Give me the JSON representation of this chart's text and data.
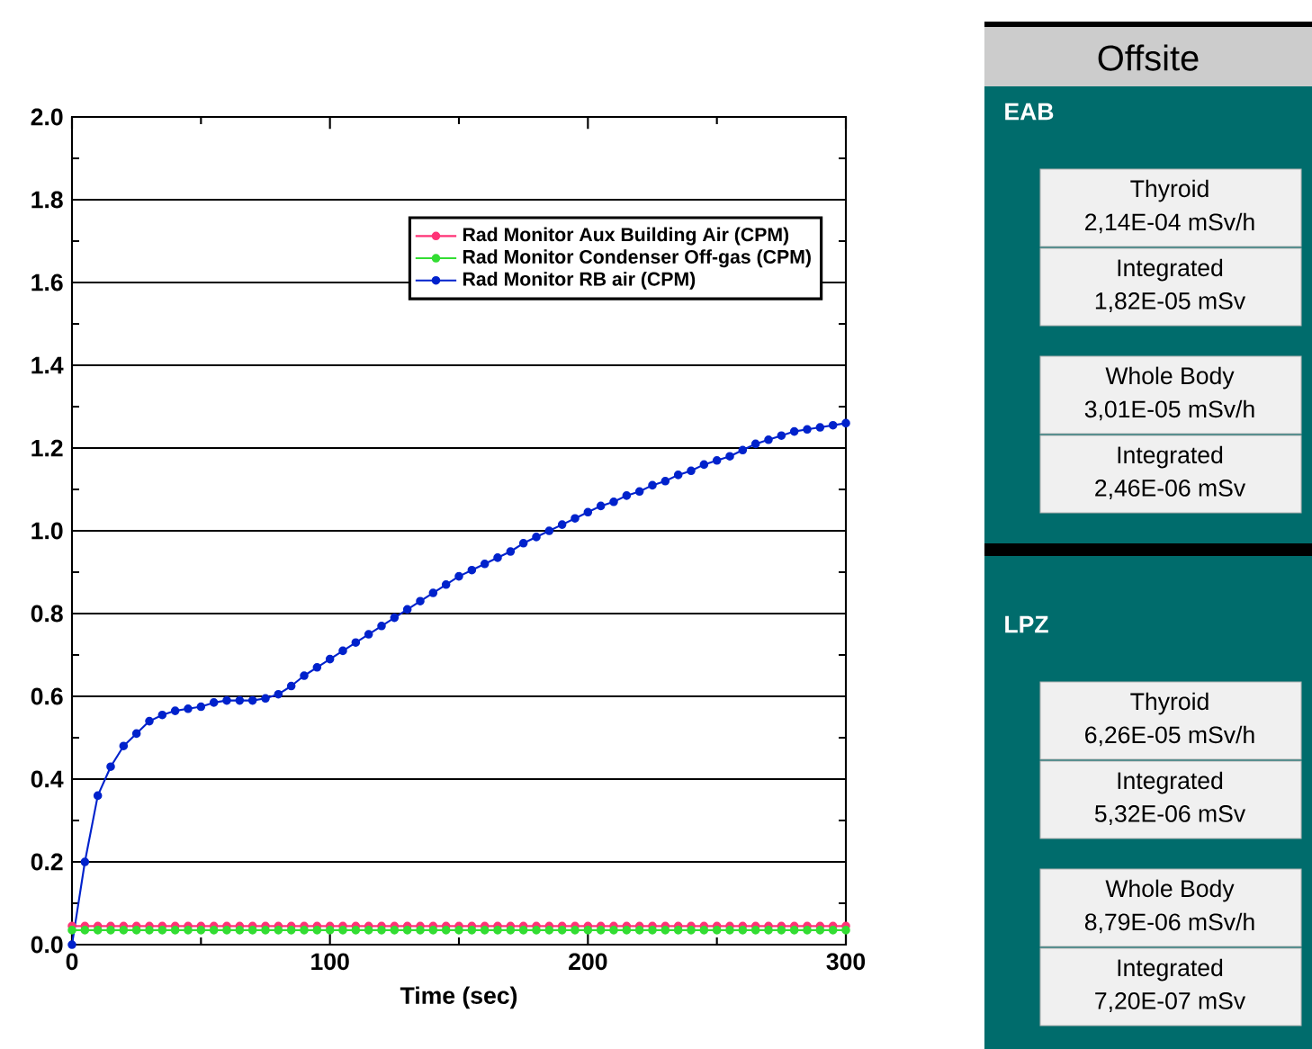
{
  "chart_data": [
    {
      "type": "line",
      "xlabel": "Time (sec)",
      "legend": "top right",
      "grid": "y",
      "marker": "circle",
      "line_style": "solid",
      "xlim": [
        0,
        300
      ],
      "ylim": [
        0,
        2.0
      ],
      "xticks": [
        0,
        {
          "value": 50,
          "label": null
        },
        100,
        {
          "value": 150,
          "label": null
        },
        200,
        {
          "value": 250,
          "label": null
        },
        300
      ],
      "yticks": [
        {
          "value": 0,
          "label": "0.0"
        },
        {
          "value": 0.1,
          "label": null
        },
        {
          "value": 0.2,
          "label": "0.2"
        },
        {
          "value": 0.3,
          "label": null
        },
        {
          "value": 0.4,
          "label": "0.4"
        },
        {
          "value": 0.5,
          "label": null
        },
        {
          "value": 0.6,
          "label": "0.6"
        },
        {
          "value": 0.7,
          "label": null
        },
        {
          "value": 0.8,
          "label": "0.8"
        },
        {
          "value": 0.9,
          "label": null
        },
        {
          "value": 1.0,
          "label": "1.0"
        },
        {
          "value": 1.1,
          "label": null
        },
        {
          "value": 1.2,
          "label": "1.2"
        },
        {
          "value": 1.3,
          "label": null
        },
        {
          "value": 1.4,
          "label": "1.4"
        },
        {
          "value": 1.5,
          "label": null
        },
        {
          "value": 1.6,
          "label": "1.6"
        },
        {
          "value": 1.7,
          "label": null
        },
        {
          "value": 1.8,
          "label": "1.8"
        },
        {
          "value": 1.9,
          "label": null
        },
        {
          "value": 2.0,
          "label": "2.0"
        }
      ],
      "x": [
        0,
        5,
        10,
        15,
        20,
        25,
        30,
        35,
        40,
        45,
        50,
        55,
        60,
        65,
        70,
        75,
        80,
        85,
        90,
        95,
        100,
        105,
        110,
        115,
        120,
        125,
        130,
        135,
        140,
        145,
        150,
        155,
        160,
        165,
        170,
        175,
        180,
        185,
        190,
        195,
        200,
        205,
        210,
        215,
        220,
        225,
        230,
        235,
        240,
        245,
        250,
        255,
        260,
        265,
        270,
        275,
        280,
        285,
        290,
        295,
        300
      ],
      "series": [
        {
          "name": "Rad Monitor Aux Building Air (CPM)",
          "color": "#ff3377",
          "values": [
            0.045,
            0.045,
            0.045,
            0.045,
            0.045,
            0.045,
            0.045,
            0.045,
            0.045,
            0.045,
            0.045,
            0.045,
            0.045,
            0.045,
            0.045,
            0.045,
            0.045,
            0.045,
            0.045,
            0.045,
            0.045,
            0.045,
            0.045,
            0.045,
            0.045,
            0.045,
            0.045,
            0.045,
            0.045,
            0.045,
            0.045,
            0.045,
            0.045,
            0.045,
            0.045,
            0.045,
            0.045,
            0.045,
            0.045,
            0.045,
            0.045,
            0.045,
            0.045,
            0.045,
            0.045,
            0.045,
            0.045,
            0.045,
            0.045,
            0.045,
            0.045,
            0.045,
            0.045,
            0.045,
            0.045,
            0.045,
            0.045,
            0.045,
            0.045,
            0.045,
            0.045
          ]
        },
        {
          "name": "Rad Monitor Condenser Off-gas (CPM)",
          "color": "#33dd33",
          "values": [
            0.035,
            0.035,
            0.035,
            0.035,
            0.035,
            0.035,
            0.035,
            0.035,
            0.035,
            0.035,
            0.035,
            0.035,
            0.035,
            0.035,
            0.035,
            0.035,
            0.035,
            0.035,
            0.035,
            0.035,
            0.035,
            0.035,
            0.035,
            0.035,
            0.035,
            0.035,
            0.035,
            0.035,
            0.035,
            0.035,
            0.035,
            0.035,
            0.035,
            0.035,
            0.035,
            0.035,
            0.035,
            0.035,
            0.035,
            0.035,
            0.035,
            0.035,
            0.035,
            0.035,
            0.035,
            0.035,
            0.035,
            0.035,
            0.035,
            0.035,
            0.035,
            0.035,
            0.035,
            0.035,
            0.035,
            0.035,
            0.035,
            0.035,
            0.035,
            0.035,
            0.035
          ]
        },
        {
          "name": "Rad Monitor RB air (CPM)",
          "color": "#0022cc",
          "values": [
            0,
            0.2,
            0.36,
            0.43,
            0.48,
            0.51,
            0.54,
            0.555,
            0.565,
            0.57,
            0.575,
            0.585,
            0.59,
            0.59,
            0.59,
            0.595,
            0.605,
            0.625,
            0.65,
            0.67,
            0.69,
            0.71,
            0.73,
            0.75,
            0.77,
            0.79,
            0.81,
            0.83,
            0.85,
            0.87,
            0.89,
            0.905,
            0.92,
            0.935,
            0.95,
            0.97,
            0.985,
            1.0,
            1.015,
            1.03,
            1.045,
            1.06,
            1.07,
            1.085,
            1.095,
            1.11,
            1.12,
            1.135,
            1.145,
            1.16,
            1.17,
            1.18,
            1.195,
            1.21,
            1.22,
            1.23,
            1.24,
            1.245,
            1.25,
            1.255,
            1.26
          ]
        }
      ]
    },
    {
      "type": "other",
      "title": "Offsite",
      "annotations": [
        "EAB",
        "Thyroid",
        "2,14E-04 mSv/h",
        "Integrated",
        "1,82E-05 mSv",
        "Whole Body",
        "3,01E-05 mSv/h",
        "Integrated",
        "2,46E-06 mSv",
        "LPZ",
        "Thyroid",
        "6,26E-05 mSv/h",
        "Integrated",
        "5,32E-06 mSv",
        "Whole Body",
        "8,79E-06 mSv/h",
        "Integrated",
        "7,20E-07 mSv"
      ]
    }
  ]
}
